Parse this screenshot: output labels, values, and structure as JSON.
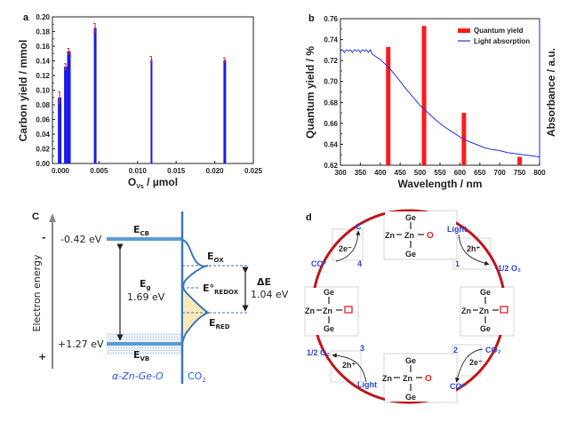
{
  "chart_data": [
    {
      "panel": "a",
      "type": "bar",
      "xlabel": "O",
      "xlabel_sub": "Vs",
      "xlabel_unit": " / µmol",
      "ylabel": "Carbon yield / mmol",
      "xlim": [
        -0.0006,
        0.025
      ],
      "ylim": [
        0,
        0.2
      ],
      "xticks": [
        "0.000",
        "0.005",
        "0.010",
        "0.015",
        "0.020",
        "0.025"
      ],
      "xtick_values": [
        0,
        0.005,
        0.01,
        0.015,
        0.02,
        0.025
      ],
      "yticks": [
        "0.00",
        "0.02",
        "0.04",
        "0.06",
        "0.08",
        "0.10",
        "0.12",
        "0.14",
        "0.16",
        "0.18",
        "0.20"
      ],
      "ytick_values": [
        0,
        0.02,
        0.04,
        0.06,
        0.08,
        0.1,
        0.12,
        0.14,
        0.16,
        0.18,
        0.2
      ],
      "x": [
        -0.0001,
        0.0007,
        0.0011,
        0.0045,
        0.0118,
        0.0213
      ],
      "values": [
        0.09,
        0.132,
        0.153,
        0.185,
        0.142,
        0.141
      ],
      "errors": [
        0.008,
        0.004,
        0.004,
        0.006,
        0.004,
        0.003
      ],
      "bar_color": "#1a1aee",
      "error_color": "#e8211f"
    },
    {
      "panel": "b",
      "type": "bar+line",
      "xlabel": "Wavelength / nm",
      "ylabel": "Quantum yield / %",
      "ylabel_right": "Absorbance / a.u.",
      "xlim": [
        300,
        800
      ],
      "ylim": [
        0.62,
        0.76
      ],
      "xticks": [
        "300",
        "350",
        "400",
        "450",
        "500",
        "550",
        "600",
        "650",
        "700",
        "750",
        "800"
      ],
      "xtick_values": [
        300,
        350,
        400,
        450,
        500,
        550,
        600,
        650,
        700,
        750,
        800
      ],
      "yticks": [
        "0.62",
        "0.64",
        "0.66",
        "0.68",
        "0.70",
        "0.72",
        "0.74",
        "0.76"
      ],
      "ytick_values": [
        0.62,
        0.64,
        0.66,
        0.68,
        0.7,
        0.72,
        0.74,
        0.76
      ],
      "legend": [
        "Quantum yield",
        "Light absorption"
      ],
      "legend_position": "top-right",
      "series": [
        {
          "name": "Quantum yield",
          "type": "bar",
          "color": "#ff1a1a",
          "x": [
            420,
            510,
            610,
            750
          ],
          "values": [
            0.733,
            0.753,
            0.67,
            0.628
          ]
        },
        {
          "name": "Light absorption",
          "type": "line",
          "color": "#2233dd",
          "x": [
            300,
            320,
            340,
            360,
            380,
            400,
            420,
            440,
            460,
            480,
            500,
            520,
            540,
            560,
            580,
            600,
            620,
            640,
            660,
            680,
            700,
            720,
            740,
            760,
            780,
            800
          ],
          "values": [
            0.729,
            0.729,
            0.729,
            0.729,
            0.726,
            0.721,
            0.714,
            0.705,
            0.695,
            0.686,
            0.677,
            0.67,
            0.663,
            0.657,
            0.652,
            0.647,
            0.643,
            0.64,
            0.637,
            0.635,
            0.634,
            0.632,
            0.631,
            0.63,
            0.629,
            0.628
          ]
        }
      ]
    }
  ],
  "panels": {
    "a": "a",
    "b": "b",
    "c": "C",
    "d": "d"
  },
  "diagram_c": {
    "axis_label": "Electron energy",
    "minus": "-",
    "plus": "+",
    "cb_value": "-0.42 eV",
    "vb_value": "+1.27 eV",
    "ecb": "E",
    "ecb_sub": "CB",
    "evb": "E",
    "evb_sub": "VB",
    "eg": "E",
    "eg_sub": "g",
    "eg_value": "1.69 eV",
    "eox": "E",
    "eox_sub": "OX",
    "eredox": "E°",
    "eredox_sub": "REDOX",
    "ered": "E",
    "ered_sub": "RED",
    "delta_e": "ΔE",
    "delta_e_value": "1.04 eV",
    "material": "α-Zn-Ge-O",
    "co2": "CO",
    "co2_sub": "2",
    "band_color": "#5b9bd5"
  },
  "diagram_d": {
    "ge": "Ge",
    "zn": "Zn",
    "o": "O",
    "steps": [
      {
        "num": "1",
        "in": "Light",
        "carrier": "2h⁺",
        "out": "1/2 O₂"
      },
      {
        "num": "2",
        "in": "CO₂",
        "carrier": "2e⁻",
        "out": "CO*"
      },
      {
        "num": "3",
        "in": "Light",
        "carrier": "2h⁺",
        "out": "1/2 O₂"
      },
      {
        "num": "4",
        "in": "CO*",
        "carrier": "2e⁻",
        "out": "C"
      }
    ],
    "cycle_color": "#c0141a"
  }
}
